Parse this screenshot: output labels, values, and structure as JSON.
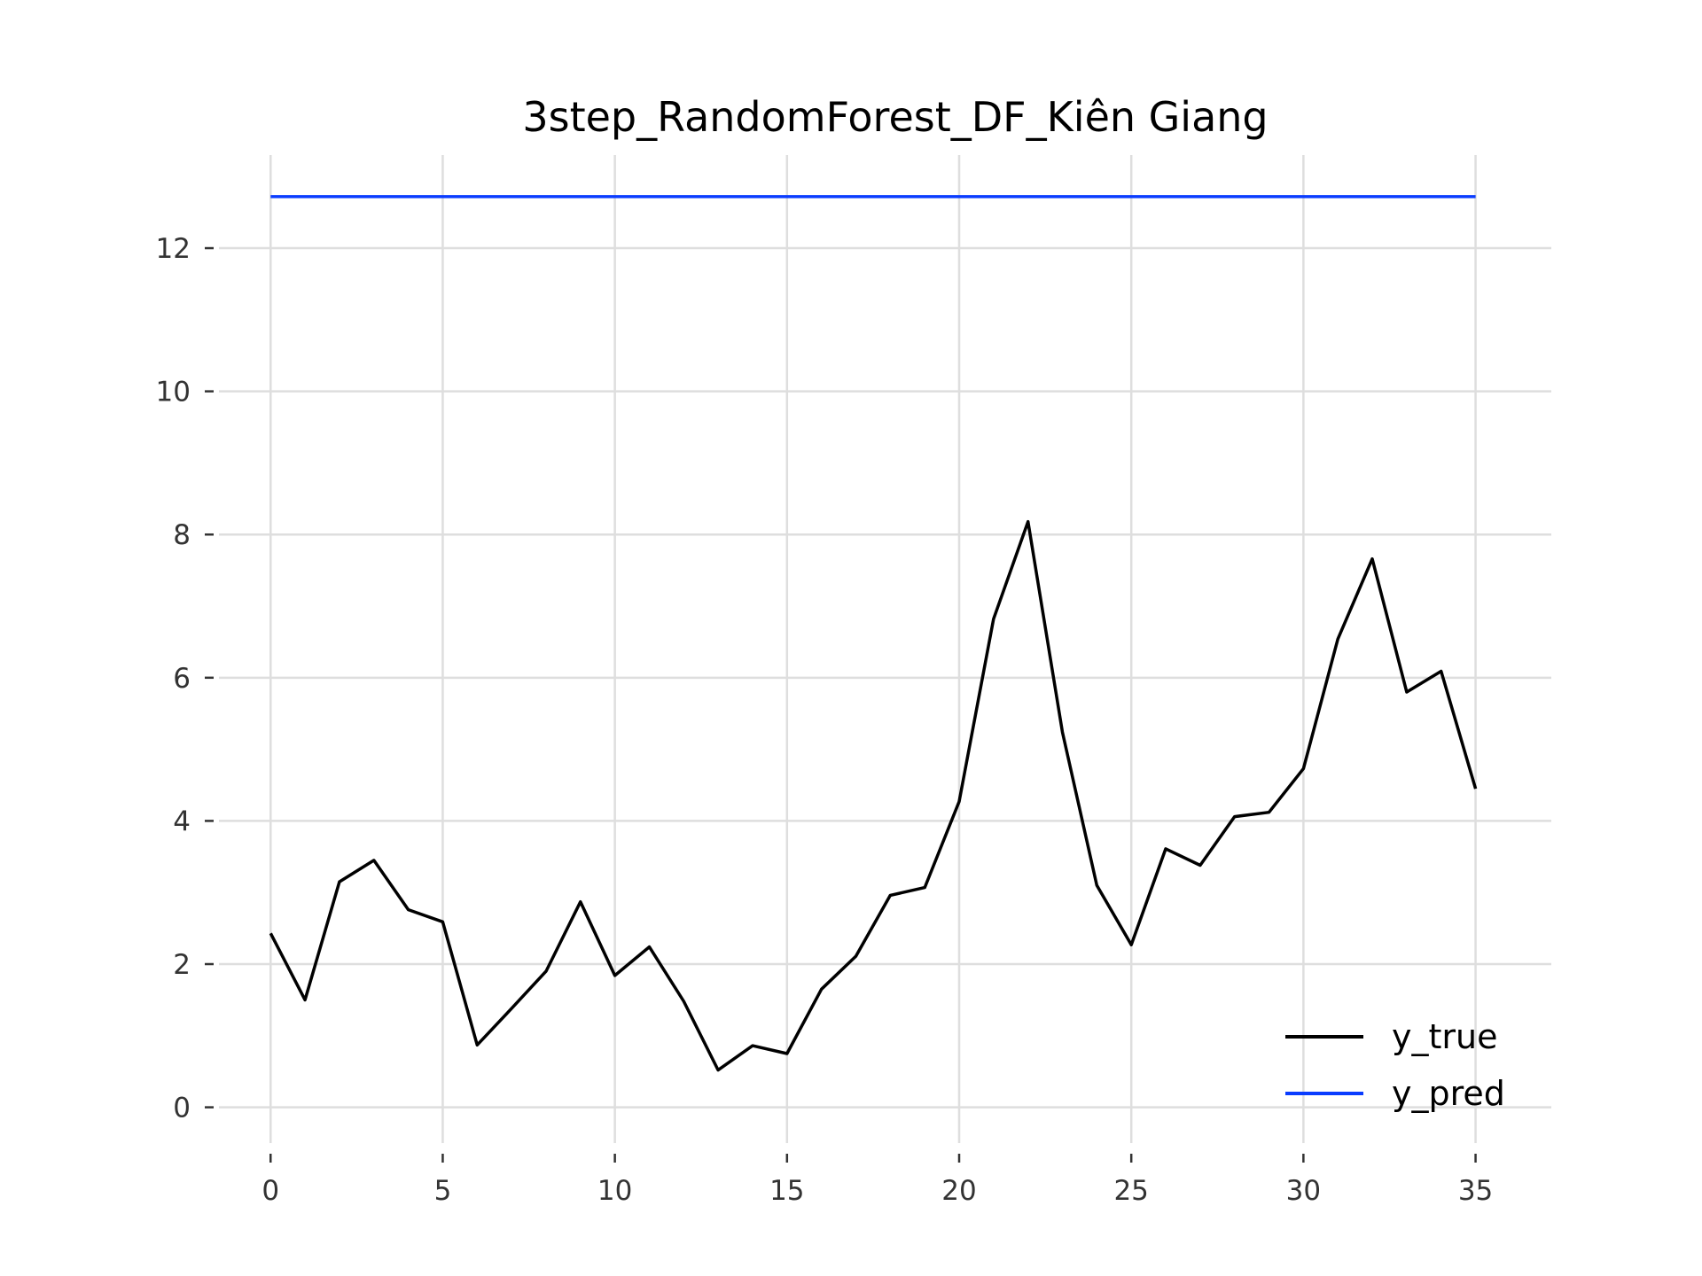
{
  "chart_data": {
    "type": "line",
    "title": "3step_RandomForest_DF_Kiên Giang",
    "xlabel": "",
    "ylabel": "",
    "xlim": [
      -1.5,
      37.2
    ],
    "ylim": [
      -0.5,
      13.3
    ],
    "xticks": [
      0,
      5,
      10,
      15,
      20,
      25,
      30,
      35
    ],
    "yticks": [
      0,
      2,
      4,
      6,
      8,
      10,
      12
    ],
    "grid": true,
    "legend_position": "bottom-right",
    "x": [
      0,
      1,
      2,
      3,
      4,
      5,
      6,
      7,
      8,
      9,
      10,
      11,
      12,
      13,
      14,
      15,
      16,
      17,
      18,
      19,
      20,
      21,
      22,
      23,
      24,
      25,
      26,
      27,
      28,
      29,
      30,
      31,
      32,
      33,
      34,
      35
    ],
    "series": [
      {
        "name": "y_true",
        "color": "#000000",
        "values": [
          2.43,
          1.5,
          3.15,
          3.45,
          2.76,
          2.59,
          0.87,
          1.38,
          1.9,
          2.87,
          1.84,
          2.24,
          1.48,
          0.52,
          0.86,
          0.75,
          1.65,
          2.11,
          2.96,
          3.07,
          4.27,
          6.82,
          8.18,
          5.24,
          3.1,
          2.27,
          3.61,
          3.38,
          4.06,
          4.12,
          4.73,
          6.54,
          7.66,
          5.8,
          6.09,
          4.45
        ]
      },
      {
        "name": "y_pred",
        "color": "#0a3cff",
        "values": [
          12.72,
          12.72,
          12.72,
          12.72,
          12.72,
          12.72,
          12.72,
          12.72,
          12.72,
          12.72,
          12.72,
          12.72,
          12.72,
          12.72,
          12.72,
          12.72,
          12.72,
          12.72,
          12.72,
          12.72,
          12.72,
          12.72,
          12.72,
          12.72,
          12.72,
          12.72,
          12.72,
          12.72,
          12.72,
          12.72,
          12.72,
          12.72,
          12.72,
          12.72,
          12.72,
          12.72
        ]
      }
    ]
  }
}
